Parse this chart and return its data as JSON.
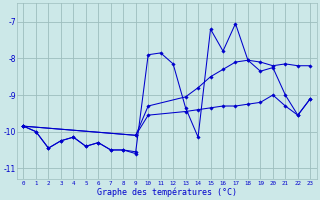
{
  "xlabel": "Graphe des températures (°C)",
  "bg_color": "#cce8e8",
  "grid_color": "#9dbdbd",
  "line_color": "#0000cc",
  "xlim": [
    -0.5,
    23.5
  ],
  "ylim": [
    -11.3,
    -6.5
  ],
  "yticks": [
    -11,
    -10,
    -9,
    -8,
    -7
  ],
  "xticks": [
    0,
    1,
    2,
    3,
    4,
    5,
    6,
    7,
    8,
    9,
    10,
    11,
    12,
    13,
    14,
    15,
    16,
    17,
    18,
    19,
    20,
    21,
    22,
    23
  ],
  "series": [
    {
      "x": [
        0,
        1,
        2,
        3,
        4,
        5,
        6,
        7,
        8,
        9
      ],
      "y": [
        -9.85,
        -10.0,
        -10.45,
        -10.25,
        -10.15,
        -10.4,
        -10.3,
        -10.5,
        -10.5,
        -10.6
      ]
    },
    {
      "x": [
        0,
        1,
        2,
        3,
        4,
        5,
        6,
        7,
        8,
        9,
        10,
        11,
        12,
        13,
        14,
        15,
        16,
        17,
        18,
        19,
        20,
        21,
        22,
        23
      ],
      "y": [
        -9.85,
        -10.0,
        -10.45,
        -10.25,
        -10.15,
        -10.4,
        -10.3,
        -10.5,
        -10.5,
        -10.55,
        -7.9,
        -7.85,
        -8.15,
        -9.35,
        -10.15,
        -7.2,
        -7.8,
        -7.05,
        -8.05,
        -8.35,
        -8.25,
        -9.0,
        -9.55,
        -9.1
      ]
    },
    {
      "x": [
        0,
        9,
        10,
        13,
        14,
        15,
        16,
        17,
        18,
        19,
        20,
        21,
        22,
        23
      ],
      "y": [
        -9.85,
        -10.1,
        -9.3,
        -9.05,
        -8.8,
        -8.5,
        -8.3,
        -8.1,
        -8.05,
        -8.1,
        -8.2,
        -8.15,
        -8.2,
        -8.2
      ]
    },
    {
      "x": [
        0,
        9,
        10,
        13,
        14,
        15,
        16,
        17,
        18,
        19,
        20,
        21,
        22,
        23
      ],
      "y": [
        -9.85,
        -10.1,
        -9.55,
        -9.45,
        -9.4,
        -9.35,
        -9.3,
        -9.3,
        -9.25,
        -9.2,
        -9.0,
        -9.3,
        -9.55,
        -9.1
      ]
    }
  ]
}
